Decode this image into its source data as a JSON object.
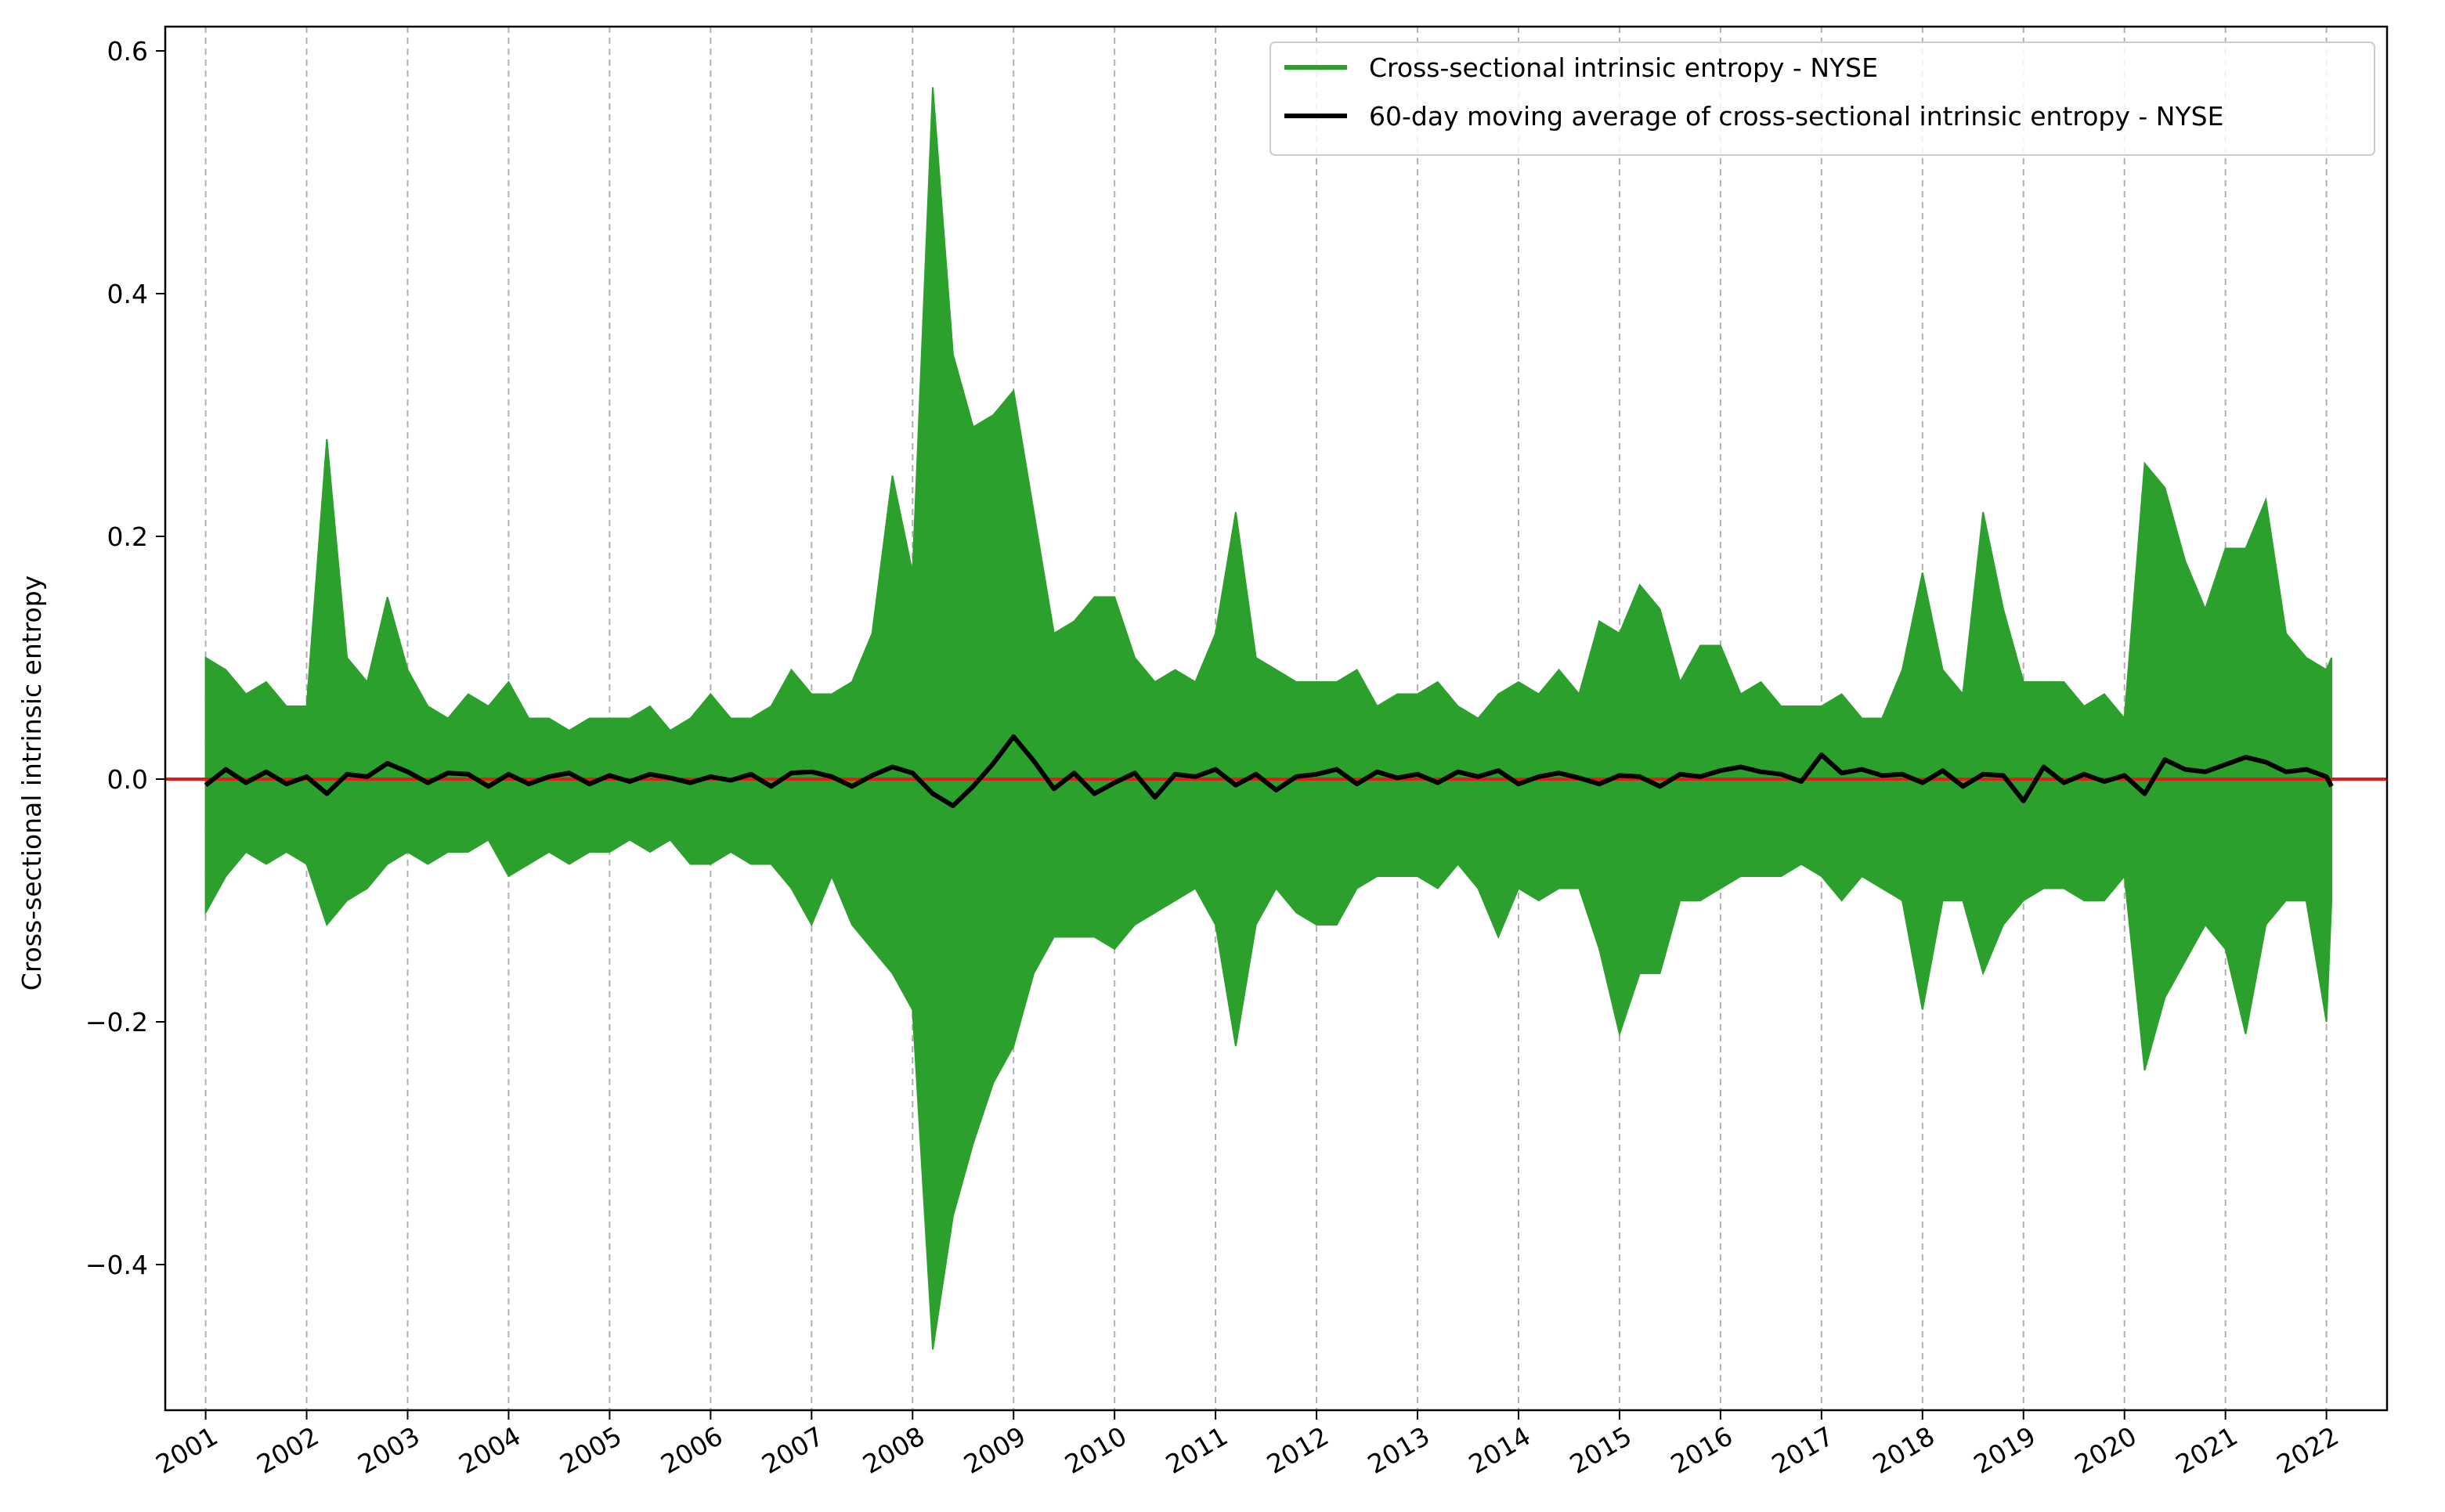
{
  "chart_data": {
    "type": "line",
    "ylabel": "Cross-sectional intrinsic entropy",
    "xlabel": "",
    "title": "",
    "xlim": [
      2000.6,
      2022.6
    ],
    "ylim": [
      -0.52,
      0.62
    ],
    "x_ticks": [
      "2001",
      "2002",
      "2003",
      "2004",
      "2005",
      "2006",
      "2007",
      "2008",
      "2009",
      "2010",
      "2011",
      "2012",
      "2013",
      "2014",
      "2015",
      "2016",
      "2017",
      "2018",
      "2019",
      "2020",
      "2021",
      "2022"
    ],
    "y_ticks": [
      {
        "value": 0.6,
        "label": "0.6"
      },
      {
        "value": 0.4,
        "label": "0.4"
      },
      {
        "value": 0.2,
        "label": "0.2"
      },
      {
        "value": 0.0,
        "label": "0.0"
      },
      {
        "value": -0.2,
        "label": "−0.2"
      },
      {
        "value": -0.4,
        "label": "−0.4"
      }
    ],
    "grid": "vertical dashed at year ticks",
    "legend_position": "top-right",
    "reference_line": {
      "y": 0.0,
      "color": "#e31a1c"
    },
    "series": [
      {
        "name": "Cross-sectional intrinsic entropy - NYSE",
        "color": "#2ca02c",
        "x": [
          2001.0,
          2001.2,
          2001.4,
          2001.6,
          2001.8,
          2002.0,
          2002.2,
          2002.4,
          2002.6,
          2002.8,
          2003.0,
          2003.2,
          2003.4,
          2003.6,
          2003.8,
          2004.0,
          2004.2,
          2004.4,
          2004.6,
          2004.8,
          2005.0,
          2005.2,
          2005.4,
          2005.6,
          2005.8,
          2006.0,
          2006.2,
          2006.4,
          2006.6,
          2006.8,
          2007.0,
          2007.2,
          2007.4,
          2007.6,
          2007.8,
          2008.0,
          2008.2,
          2008.4,
          2008.6,
          2008.8,
          2009.0,
          2009.2,
          2009.4,
          2009.6,
          2009.8,
          2010.0,
          2010.2,
          2010.4,
          2010.6,
          2010.8,
          2011.0,
          2011.2,
          2011.4,
          2011.6,
          2011.8,
          2012.0,
          2012.2,
          2012.4,
          2012.6,
          2012.8,
          2013.0,
          2013.2,
          2013.4,
          2013.6,
          2013.8,
          2014.0,
          2014.2,
          2014.4,
          2014.6,
          2014.8,
          2015.0,
          2015.2,
          2015.4,
          2015.6,
          2015.8,
          2016.0,
          2016.2,
          2016.4,
          2016.6,
          2016.8,
          2017.0,
          2017.2,
          2017.4,
          2017.6,
          2017.8,
          2018.0,
          2018.2,
          2018.4,
          2018.6,
          2018.8,
          2019.0,
          2019.2,
          2019.4,
          2019.6,
          2019.8,
          2020.0,
          2020.2,
          2020.4,
          2020.6,
          2020.8,
          2021.0,
          2021.2,
          2021.4,
          2021.6,
          2021.8,
          2022.0,
          2022.05
        ],
        "y_high": [
          0.1,
          0.09,
          0.07,
          0.08,
          0.06,
          0.06,
          0.28,
          0.1,
          0.08,
          0.15,
          0.09,
          0.06,
          0.05,
          0.07,
          0.06,
          0.08,
          0.05,
          0.05,
          0.04,
          0.05,
          0.05,
          0.05,
          0.06,
          0.04,
          0.05,
          0.07,
          0.05,
          0.05,
          0.06,
          0.09,
          0.07,
          0.07,
          0.08,
          0.12,
          0.25,
          0.17,
          0.57,
          0.35,
          0.29,
          0.3,
          0.32,
          0.22,
          0.12,
          0.13,
          0.15,
          0.15,
          0.1,
          0.08,
          0.09,
          0.08,
          0.12,
          0.22,
          0.1,
          0.09,
          0.08,
          0.08,
          0.08,
          0.09,
          0.06,
          0.07,
          0.07,
          0.08,
          0.06,
          0.05,
          0.07,
          0.08,
          0.07,
          0.09,
          0.07,
          0.13,
          0.12,
          0.16,
          0.14,
          0.08,
          0.11,
          0.11,
          0.07,
          0.08,
          0.06,
          0.06,
          0.06,
          0.07,
          0.05,
          0.05,
          0.09,
          0.17,
          0.09,
          0.07,
          0.22,
          0.14,
          0.08,
          0.08,
          0.08,
          0.06,
          0.07,
          0.05,
          0.26,
          0.24,
          0.18,
          0.14,
          0.19,
          0.19,
          0.23,
          0.12,
          0.1,
          0.09,
          0.1
        ],
        "y_low": [
          -0.11,
          -0.08,
          -0.06,
          -0.07,
          -0.06,
          -0.07,
          -0.12,
          -0.1,
          -0.09,
          -0.07,
          -0.06,
          -0.07,
          -0.06,
          -0.06,
          -0.05,
          -0.08,
          -0.07,
          -0.06,
          -0.07,
          -0.06,
          -0.06,
          -0.05,
          -0.06,
          -0.05,
          -0.07,
          -0.07,
          -0.06,
          -0.07,
          -0.07,
          -0.09,
          -0.12,
          -0.08,
          -0.12,
          -0.14,
          -0.16,
          -0.19,
          -0.47,
          -0.36,
          -0.3,
          -0.25,
          -0.22,
          -0.16,
          -0.13,
          -0.13,
          -0.13,
          -0.14,
          -0.12,
          -0.11,
          -0.1,
          -0.09,
          -0.12,
          -0.22,
          -0.12,
          -0.09,
          -0.11,
          -0.12,
          -0.12,
          -0.09,
          -0.08,
          -0.08,
          -0.08,
          -0.09,
          -0.07,
          -0.09,
          -0.13,
          -0.09,
          -0.1,
          -0.09,
          -0.09,
          -0.14,
          -0.21,
          -0.16,
          -0.16,
          -0.1,
          -0.1,
          -0.09,
          -0.08,
          -0.08,
          -0.08,
          -0.07,
          -0.08,
          -0.1,
          -0.08,
          -0.09,
          -0.1,
          -0.19,
          -0.1,
          -0.1,
          -0.16,
          -0.12,
          -0.1,
          -0.09,
          -0.09,
          -0.1,
          -0.1,
          -0.08,
          -0.24,
          -0.18,
          -0.15,
          -0.12,
          -0.14,
          -0.21,
          -0.12,
          -0.1,
          -0.1,
          -0.2,
          -0.1
        ]
      },
      {
        "name": "60-day moving average of cross-sectional intrinsic entropy - NYSE",
        "color": "#000000",
        "x": [
          2001.0,
          2001.2,
          2001.4,
          2001.6,
          2001.8,
          2002.0,
          2002.2,
          2002.4,
          2002.6,
          2002.8,
          2003.0,
          2003.2,
          2003.4,
          2003.6,
          2003.8,
          2004.0,
          2004.2,
          2004.4,
          2004.6,
          2004.8,
          2005.0,
          2005.2,
          2005.4,
          2005.6,
          2005.8,
          2006.0,
          2006.2,
          2006.4,
          2006.6,
          2006.8,
          2007.0,
          2007.2,
          2007.4,
          2007.6,
          2007.8,
          2008.0,
          2008.2,
          2008.4,
          2008.6,
          2008.8,
          2009.0,
          2009.2,
          2009.4,
          2009.6,
          2009.8,
          2010.0,
          2010.2,
          2010.4,
          2010.6,
          2010.8,
          2011.0,
          2011.2,
          2011.4,
          2011.6,
          2011.8,
          2012.0,
          2012.2,
          2012.4,
          2012.6,
          2012.8,
          2013.0,
          2013.2,
          2013.4,
          2013.6,
          2013.8,
          2014.0,
          2014.2,
          2014.4,
          2014.6,
          2014.8,
          2015.0,
          2015.2,
          2015.4,
          2015.6,
          2015.8,
          2016.0,
          2016.2,
          2016.4,
          2016.6,
          2016.8,
          2017.0,
          2017.2,
          2017.4,
          2017.6,
          2017.8,
          2018.0,
          2018.2,
          2018.4,
          2018.6,
          2018.8,
          2019.0,
          2019.2,
          2019.4,
          2019.6,
          2019.8,
          2020.0,
          2020.2,
          2020.4,
          2020.6,
          2020.8,
          2021.0,
          2021.2,
          2021.4,
          2021.6,
          2021.8,
          2022.0,
          2022.05
        ],
        "y": [
          -0.005,
          0.008,
          -0.003,
          0.006,
          -0.004,
          0.002,
          -0.012,
          0.004,
          0.002,
          0.013,
          0.006,
          -0.003,
          0.005,
          0.004,
          -0.006,
          0.004,
          -0.004,
          0.002,
          0.005,
          -0.004,
          0.003,
          -0.002,
          0.004,
          0.001,
          -0.003,
          0.002,
          -0.001,
          0.004,
          -0.006,
          0.005,
          0.006,
          0.002,
          -0.006,
          0.003,
          0.01,
          0.005,
          -0.012,
          -0.022,
          -0.006,
          0.013,
          0.035,
          0.015,
          -0.008,
          0.005,
          -0.012,
          -0.003,
          0.005,
          -0.015,
          0.004,
          0.002,
          0.008,
          -0.005,
          0.004,
          -0.009,
          0.002,
          0.004,
          0.008,
          -0.004,
          0.006,
          0.001,
          0.004,
          -0.003,
          0.006,
          0.002,
          0.007,
          -0.004,
          0.002,
          0.005,
          0.001,
          -0.004,
          0.003,
          0.002,
          -0.006,
          0.004,
          0.002,
          0.007,
          0.01,
          0.006,
          0.004,
          -0.002,
          0.02,
          0.005,
          0.008,
          0.003,
          0.004,
          -0.003,
          0.007,
          -0.006,
          0.004,
          0.003,
          -0.018,
          0.01,
          -0.003,
          0.004,
          -0.002,
          0.003,
          -0.012,
          0.016,
          0.008,
          0.006,
          0.012,
          0.018,
          0.014,
          0.006,
          0.008,
          0.002,
          -0.006
        ]
      }
    ]
  }
}
